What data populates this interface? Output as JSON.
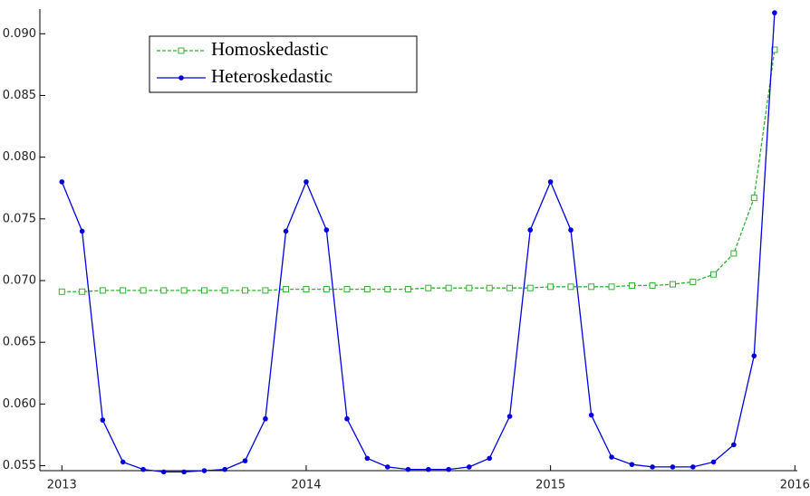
{
  "chart_data": {
    "type": "line",
    "x": [
      2013,
      2013.083,
      2013.167,
      2013.25,
      2013.333,
      2013.417,
      2013.5,
      2013.583,
      2013.667,
      2013.75,
      2013.833,
      2013.917,
      2014,
      2014.083,
      2014.167,
      2014.25,
      2014.333,
      2014.417,
      2014.5,
      2014.583,
      2014.667,
      2014.75,
      2014.833,
      2014.917,
      2015,
      2015.083,
      2015.167,
      2015.25,
      2015.333,
      2015.417,
      2015.5,
      2015.583,
      2015.667,
      2015.75,
      2015.833,
      2015.917
    ],
    "series": [
      {
        "name": "Homoskedastic",
        "color": "#33b033",
        "marker": "square",
        "linestyle": "dashed",
        "values": [
          0.0691,
          0.0691,
          0.0692,
          0.0692,
          0.0692,
          0.0692,
          0.0692,
          0.0692,
          0.0692,
          0.0692,
          0.0692,
          0.0693,
          0.0693,
          0.0693,
          0.0693,
          0.0693,
          0.0693,
          0.0693,
          0.0694,
          0.0694,
          0.0694,
          0.0694,
          0.0694,
          0.0694,
          0.0695,
          0.0695,
          0.0695,
          0.0695,
          0.0696,
          0.0696,
          0.0697,
          0.0699,
          0.0705,
          0.0722,
          0.0767,
          0.0887
        ]
      },
      {
        "name": "Heteroskedastic",
        "color": "#0000dd",
        "marker": "circle",
        "linestyle": "solid",
        "values": [
          0.078,
          0.074,
          0.0587,
          0.0553,
          0.0547,
          0.0545,
          0.0545,
          0.0546,
          0.0547,
          0.0554,
          0.0588,
          0.074,
          0.078,
          0.0741,
          0.0588,
          0.0556,
          0.0549,
          0.0547,
          0.0547,
          0.0547,
          0.0549,
          0.0556,
          0.059,
          0.0741,
          0.078,
          0.0741,
          0.0591,
          0.0557,
          0.0551,
          0.0549,
          0.0549,
          0.0549,
          0.0553,
          0.0567,
          0.0639,
          0.0917
        ]
      }
    ],
    "xlim": [
      2012.91,
      2016.01
    ],
    "xticks": [
      2013,
      2014,
      2015,
      2016
    ],
    "ylim": [
      0.0546,
      0.092
    ],
    "yticks": [
      0.055,
      {
        "value": 0.06,
        "label": "0.060"
      },
      0.065,
      {
        "value": 0.07,
        "label": "0.070"
      },
      0.075,
      {
        "value": 0.08,
        "label": "0.080"
      },
      0.085,
      {
        "value": 0.09,
        "label": "0.090"
      }
    ],
    "legend": "upper left"
  }
}
